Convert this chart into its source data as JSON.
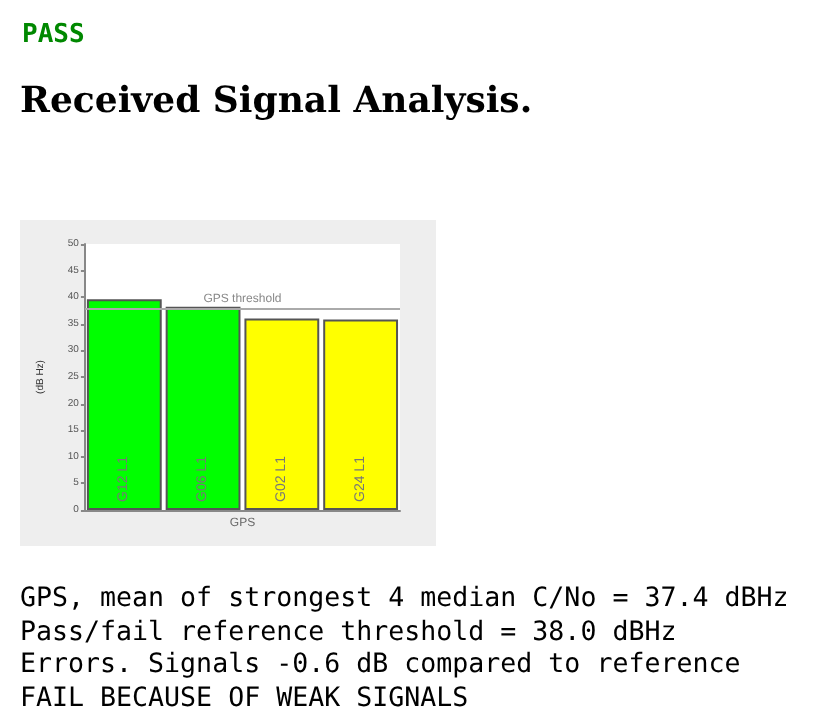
{
  "chart_data": {
    "type": "bar",
    "title": "Received Signal Analysis.",
    "xlabel": "GPS",
    "ylabel": "(dB Hz)",
    "categories": [
      "G12 L1",
      "G06 L1",
      "G02 L1",
      "G24 L1"
    ],
    "values": [
      39.6,
      38.2,
      36.0,
      35.8
    ],
    "colors": [
      "#00ff00",
      "#00ff00",
      "#ffff00",
      "#ffff00"
    ],
    "ylim": [
      0,
      50
    ],
    "yticks": [
      0,
      5,
      10,
      15,
      20,
      25,
      30,
      35,
      40,
      45,
      50
    ],
    "grid": false,
    "ref_lines": [
      {
        "axis": "y",
        "value": 38,
        "label": "GPS threshold",
        "color": "#aaaaaa"
      }
    ],
    "annotations": [
      "PASS",
      "GPS, mean of strongest 4 median C/No = 37.4 dBHz",
      "Pass/fail reference threshold = 38.0 dBHz",
      "Errors. Signals -0.6 dB compared to reference",
      "FAIL BECAUSE OF WEAK SIGNALS"
    ]
  }
}
